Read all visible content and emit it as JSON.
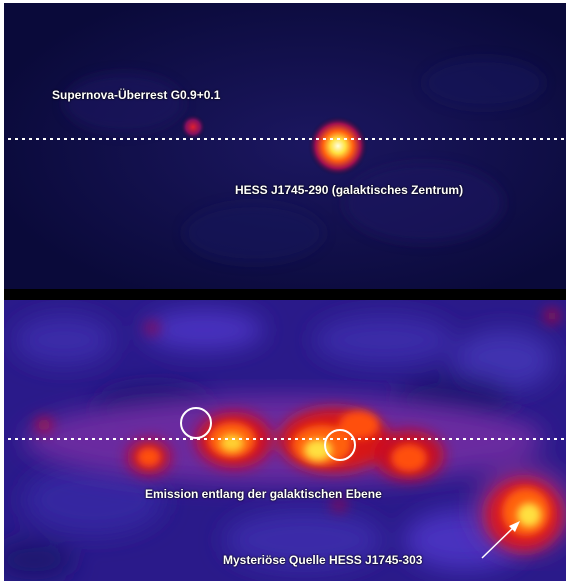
{
  "labels": {
    "supernova": "Supernova-Überrest G0.9+0.1",
    "galactic_center": "HESS J1745-290 (galaktisches Zentrum)",
    "emission": "Emission entlang der galaktischen Ebene",
    "mysterious": "Mysteriöse Quelle HESS J1745-303"
  },
  "colors": {
    "background_dark": "#0a0a3a",
    "background_blue": "#2a1a8a",
    "emission_red": "#e01010",
    "emission_yellow": "#ffe040",
    "marker_white": "#ffffff"
  }
}
